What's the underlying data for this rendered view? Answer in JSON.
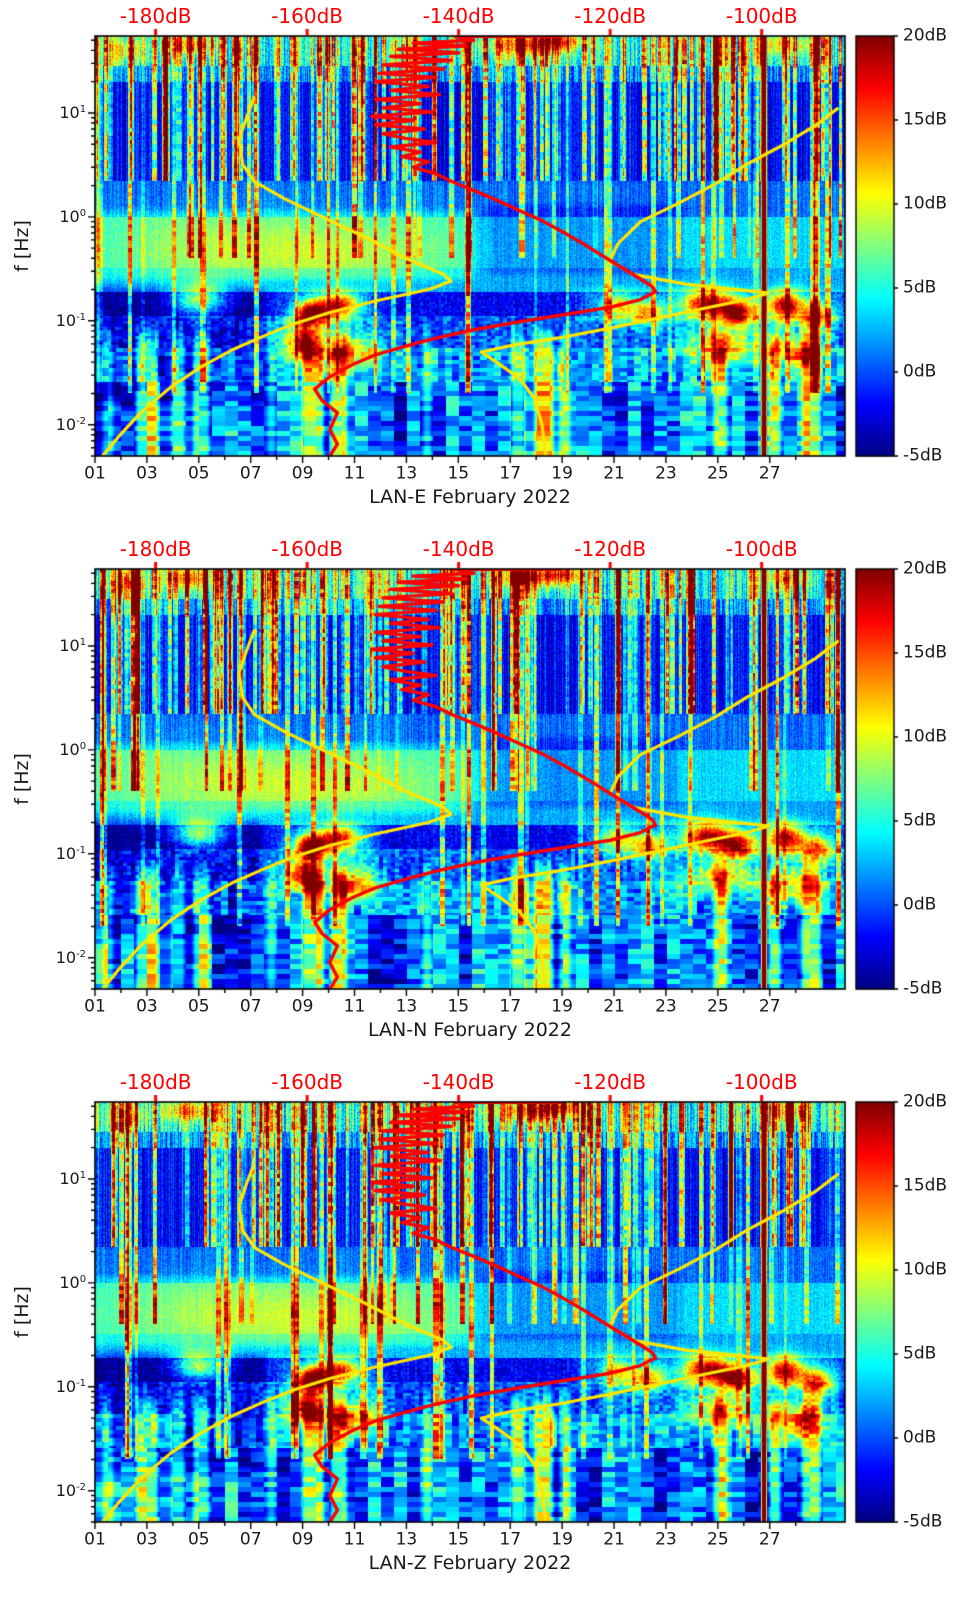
{
  "figure": {
    "background": "#ffffff",
    "axis_text_color": "#1a1a1a",
    "db_axis_text_color": "#ff0000"
  },
  "chart_data": {
    "type": "heatmap",
    "subtype": "power-spectral-density-spectrogram",
    "panels": [
      {
        "xlabel": "LAN-E February 2022",
        "seed": 11
      },
      {
        "xlabel": "LAN-N February 2022",
        "seed": 47
      },
      {
        "xlabel": "LAN-Z February 2022",
        "seed": 83
      }
    ],
    "axes": {
      "y_label": "f [Hz]",
      "freq_range_hz": [
        0.005,
        55
      ],
      "y_tick_exponents": [
        1,
        0,
        -1,
        -2
      ],
      "day_range": [
        1,
        29.9
      ],
      "x_tick_days": [
        1,
        3,
        5,
        7,
        9,
        11,
        13,
        15,
        17,
        19,
        21,
        23,
        25,
        27
      ],
      "x_tick_labels": [
        "01",
        "03",
        "05",
        "07",
        "09",
        "11",
        "13",
        "15",
        "17",
        "19",
        "21",
        "23",
        "25",
        "27"
      ],
      "x_minor_days": [
        2,
        4,
        6,
        8,
        10,
        12,
        14,
        16,
        18,
        20,
        22,
        24,
        26,
        28
      ],
      "db_axis_range": [
        -188,
        -89
      ],
      "db_ticks": [
        {
          "value": -180,
          "label": "-180dB"
        },
        {
          "value": -160,
          "label": "-160dB"
        },
        {
          "value": -140,
          "label": "-140dB"
        },
        {
          "value": -120,
          "label": "-120dB"
        },
        {
          "value": -100,
          "label": "-100dB"
        }
      ]
    },
    "colorbar": {
      "range_db": [
        -5,
        20
      ],
      "ticks": [
        {
          "value": 20,
          "label": "20dB"
        },
        {
          "value": 15,
          "label": "15dB"
        },
        {
          "value": 10,
          "label": "10dB"
        },
        {
          "value": 5,
          "label": "5dB"
        },
        {
          "value": 0,
          "label": "0dB"
        },
        {
          "value": -5,
          "label": "-5dB"
        }
      ]
    },
    "overlays": {
      "red_median_curve": {
        "color": "#ff0000",
        "points_db_hz": [
          [
            -126.5,
            54.5
          ],
          [
            -140.5,
            54.5
          ],
          [
            -138,
            50
          ],
          [
            -146,
            47
          ],
          [
            -139,
            44
          ],
          [
            -148,
            41
          ],
          [
            -140,
            38
          ],
          [
            -149,
            35
          ],
          [
            -141,
            32
          ],
          [
            -150,
            29
          ],
          [
            -142,
            26.5
          ],
          [
            -150.5,
            24
          ],
          [
            -143,
            22
          ],
          [
            -151,
            20
          ],
          [
            -144,
            18
          ],
          [
            -149,
            16.5
          ],
          [
            -142.5,
            15
          ],
          [
            -151,
            13.5
          ],
          [
            -145,
            12.3
          ],
          [
            -150,
            11.2
          ],
          [
            -143.5,
            10.2
          ],
          [
            -151.5,
            9.3
          ],
          [
            -146,
            8.5
          ],
          [
            -151,
            7.7
          ],
          [
            -144.5,
            7
          ],
          [
            -150,
            6.3
          ],
          [
            -147,
            5.7
          ],
          [
            -143,
            5.2
          ],
          [
            -149,
            4.7
          ],
          [
            -145,
            4.2
          ],
          [
            -147.5,
            3.8
          ],
          [
            -144,
            3.4
          ],
          [
            -146,
            3
          ],
          [
            -143,
            2.6
          ],
          [
            -141,
            2.2
          ],
          [
            -138,
            1.8
          ],
          [
            -135,
            1.45
          ],
          [
            -132,
            1.15
          ],
          [
            -129,
            0.92
          ],
          [
            -126,
            0.7
          ],
          [
            -123,
            0.52
          ],
          [
            -120,
            0.38
          ],
          [
            -117,
            0.28
          ],
          [
            -114.5,
            0.215
          ],
          [
            -114,
            0.19
          ],
          [
            -116,
            0.16
          ],
          [
            -120,
            0.135
          ],
          [
            -126,
            0.115
          ],
          [
            -132,
            0.098
          ],
          [
            -138,
            0.082
          ],
          [
            -143,
            0.068
          ],
          [
            -147,
            0.057
          ],
          [
            -151,
            0.047
          ],
          [
            -154,
            0.038
          ],
          [
            -157,
            0.029
          ],
          [
            -159,
            0.022
          ],
          [
            -158,
            0.017
          ],
          [
            -156,
            0.013
          ],
          [
            -157,
            0.009
          ],
          [
            -156,
            0.0065
          ],
          [
            -157,
            0.005
          ]
        ]
      },
      "yellow_low_noise_curve": {
        "color": "#ffe600",
        "points_db_hz": [
          [
            -167,
            14
          ],
          [
            -168,
            9
          ],
          [
            -169,
            5.5
          ],
          [
            -168.5,
            3.2
          ],
          [
            -167,
            2.2
          ],
          [
            -163,
            1.5
          ],
          [
            -158,
            1
          ],
          [
            -152,
            0.62
          ],
          [
            -147,
            0.4
          ],
          [
            -142,
            0.28
          ],
          [
            -141,
            0.24
          ],
          [
            -144,
            0.2
          ],
          [
            -151,
            0.155
          ],
          [
            -157,
            0.12
          ],
          [
            -162,
            0.092
          ],
          [
            -166,
            0.07
          ],
          [
            -170,
            0.052
          ],
          [
            -174,
            0.036
          ],
          [
            -178,
            0.023
          ],
          [
            -182,
            0.013
          ],
          [
            -185,
            0.0075
          ],
          [
            -187,
            0.005
          ]
        ]
      },
      "yellow_high_noise_curve": {
        "color": "#ffe600",
        "points_db_hz": [
          [
            -90,
            11
          ],
          [
            -93,
            7.5
          ],
          [
            -97,
            5
          ],
          [
            -102,
            3.2
          ],
          [
            -106,
            2.1
          ],
          [
            -111,
            1.35
          ],
          [
            -116,
            0.9
          ],
          [
            -119,
            0.55
          ],
          [
            -120,
            0.38
          ],
          [
            -117,
            0.28
          ],
          [
            -110,
            0.225
          ],
          [
            -102,
            0.195
          ],
          [
            -99,
            0.185
          ],
          [
            -102,
            0.16
          ],
          [
            -108,
            0.13
          ],
          [
            -114,
            0.105
          ],
          [
            -120,
            0.085
          ],
          [
            -127,
            0.068
          ],
          [
            -133,
            0.058
          ],
          [
            -137,
            0.05
          ],
          [
            -135,
            0.04
          ],
          [
            -132,
            0.028
          ],
          [
            -130,
            0.018
          ],
          [
            -129,
            0.01
          ],
          [
            -128.5,
            0.005
          ]
        ]
      }
    },
    "heatmap_features": {
      "bands": [
        {
          "f": [
            28,
            55
          ],
          "base": 4.5,
          "noise": 2.5,
          "col_noise": 3.5,
          "qx": 1,
          "qy": 1
        },
        {
          "f": [
            20,
            28
          ],
          "base": 1.5,
          "noise": 2,
          "col_noise": 3,
          "qx": 1,
          "qy": 1
        },
        {
          "f": [
            2.2,
            20
          ],
          "base": -1.2,
          "noise": 1.6,
          "col_noise": 2.2,
          "qx": 1,
          "qy": 1
        },
        {
          "f": [
            1,
            2.2
          ],
          "base": 0.8,
          "noise": 1.4,
          "col_noise": 1.4,
          "qx": 1,
          "qy": 1
        },
        {
          "f": [
            0.32,
            1
          ],
          "base": 3.6,
          "noise": 1.4,
          "col_noise": 0.8,
          "qx": 1,
          "qy": 1
        },
        {
          "f": [
            0.19,
            0.32
          ],
          "base": 2.2,
          "noise": 1.4,
          "col_noise": 0.8,
          "qx": 1,
          "qy": 1
        },
        {
          "f": [
            0.11,
            0.19
          ],
          "base": -2.2,
          "noise": 1.6,
          "col_noise": 0.8,
          "qx": 2,
          "qy": 2
        },
        {
          "f": [
            0.055,
            0.11
          ],
          "base": 0.2,
          "noise": 2.2,
          "col_noise": 1.6,
          "qx": 4,
          "qy": 3
        },
        {
          "f": [
            0.026,
            0.055
          ],
          "base": 2.2,
          "noise": 2.6,
          "col_noise": 2.6,
          "qx": 7,
          "qy": 4
        },
        {
          "f": [
            0.005,
            0.026
          ],
          "base": 0.8,
          "noise": 3.2,
          "col_noise": 3.6,
          "qx": 13,
          "qy": 5
        }
      ],
      "modifiers": [
        {
          "days": [
            0.5,
            15.5
          ],
          "f": [
            0.25,
            1.15
          ],
          "amp": 2.2
        },
        {
          "days": [
            16,
            23.5
          ],
          "f": [
            0.28,
            1.3
          ],
          "amp": -1.8
        },
        {
          "days": [
            0.5,
            7.5
          ],
          "f": [
            0.015,
            0.21
          ],
          "amp": -2.6
        },
        {
          "days": [
            19.5,
            30
          ],
          "f": [
            0.1,
            0.2
          ],
          "amp": 2.5
        },
        {
          "days": [
            7.8,
            12
          ],
          "f": [
            0.04,
            0.2
          ],
          "amp": 1.5
        },
        {
          "days": [
            0.5,
            30
          ],
          "f": [
            2.2,
            20
          ],
          "amp": -0.5
        }
      ],
      "blobs": [
        {
          "d": 5.0,
          "f": 0.16,
          "a": 13,
          "sd": 0.7,
          "sf": 0.1
        },
        {
          "d": 9.3,
          "f": 0.115,
          "a": 22,
          "sd": 0.45,
          "sf": 0.09
        },
        {
          "d": 10.4,
          "f": 0.14,
          "a": 18,
          "sd": 0.6,
          "sf": 0.09
        },
        {
          "d": 9.0,
          "f": 0.062,
          "a": 16,
          "sd": 0.45,
          "sf": 0.1
        },
        {
          "d": 10.9,
          "f": 0.05,
          "a": 11,
          "sd": 0.7,
          "sf": 0.12
        },
        {
          "d": 21.1,
          "f": 0.14,
          "a": 11,
          "sd": 0.45,
          "sf": 0.09
        },
        {
          "d": 22.3,
          "f": 0.12,
          "a": 13,
          "sd": 0.5,
          "sf": 0.09
        },
        {
          "d": 24.6,
          "f": 0.145,
          "a": 19,
          "sd": 0.7,
          "sf": 0.1
        },
        {
          "d": 25.8,
          "f": 0.12,
          "a": 17,
          "sd": 0.5,
          "sf": 0.09
        },
        {
          "d": 27.6,
          "f": 0.14,
          "a": 19,
          "sd": 0.5,
          "sf": 0.1
        },
        {
          "d": 28.8,
          "f": 0.11,
          "a": 15,
          "sd": 0.45,
          "sf": 0.1
        },
        {
          "d": 25.1,
          "f": 0.06,
          "a": 11,
          "sd": 1.1,
          "sf": 0.12
        },
        {
          "d": 28.1,
          "f": 0.05,
          "a": 11,
          "sd": 0.7,
          "sf": 0.12
        },
        {
          "d": 4.6,
          "f": 45,
          "a": 9,
          "sd": 0.7,
          "sf": 0.07
        },
        {
          "d": 17.8,
          "f": 45,
          "a": 10,
          "sd": 1.1,
          "sf": 0.07
        },
        {
          "d": 18.9,
          "f": 50,
          "a": 8,
          "sd": 0.6,
          "sf": 0.06
        },
        {
          "d": 2.2,
          "f": 40,
          "a": 6,
          "sd": 0.5,
          "sf": 0.08
        },
        {
          "d": 27.6,
          "f": 45,
          "a": 7,
          "sd": 0.7,
          "sf": 0.07
        },
        {
          "d": 10.5,
          "f": 0.45,
          "a": 3,
          "sd": 2.8,
          "sf": 0.22
        },
        {
          "d": 5.5,
          "f": 0.5,
          "a": 2.5,
          "sd": 2.5,
          "sf": 0.25
        }
      ],
      "low_freq_columns": [
        {
          "d": 3.0,
          "w": 0.8,
          "a": 8
        },
        {
          "d": 4.2,
          "w": 0.5,
          "a": 6
        },
        {
          "d": 5.1,
          "w": 0.6,
          "a": 7
        },
        {
          "d": 9.4,
          "w": 0.8,
          "a": 9
        },
        {
          "d": 10.4,
          "w": 0.6,
          "a": 8
        },
        {
          "d": 13.8,
          "w": 0.3,
          "a": 5
        },
        {
          "d": 17.3,
          "w": 0.5,
          "a": 8
        },
        {
          "d": 18.3,
          "w": 0.7,
          "a": 9
        },
        {
          "d": 19.1,
          "w": 0.4,
          "a": 6
        },
        {
          "d": 25.1,
          "w": 0.5,
          "a": 7
        },
        {
          "d": 27.2,
          "w": 0.4,
          "a": 8
        },
        {
          "d": 28.6,
          "w": 0.7,
          "a": 8
        },
        {
          "d": 1.5,
          "w": 0.4,
          "a": 5
        },
        {
          "d": 7.8,
          "w": 0.3,
          "a": 4
        }
      ],
      "marker_line": {
        "day": 26.78,
        "half_width_days": 0.1,
        "value_db": 21
      },
      "stripe_count": 150
    }
  }
}
